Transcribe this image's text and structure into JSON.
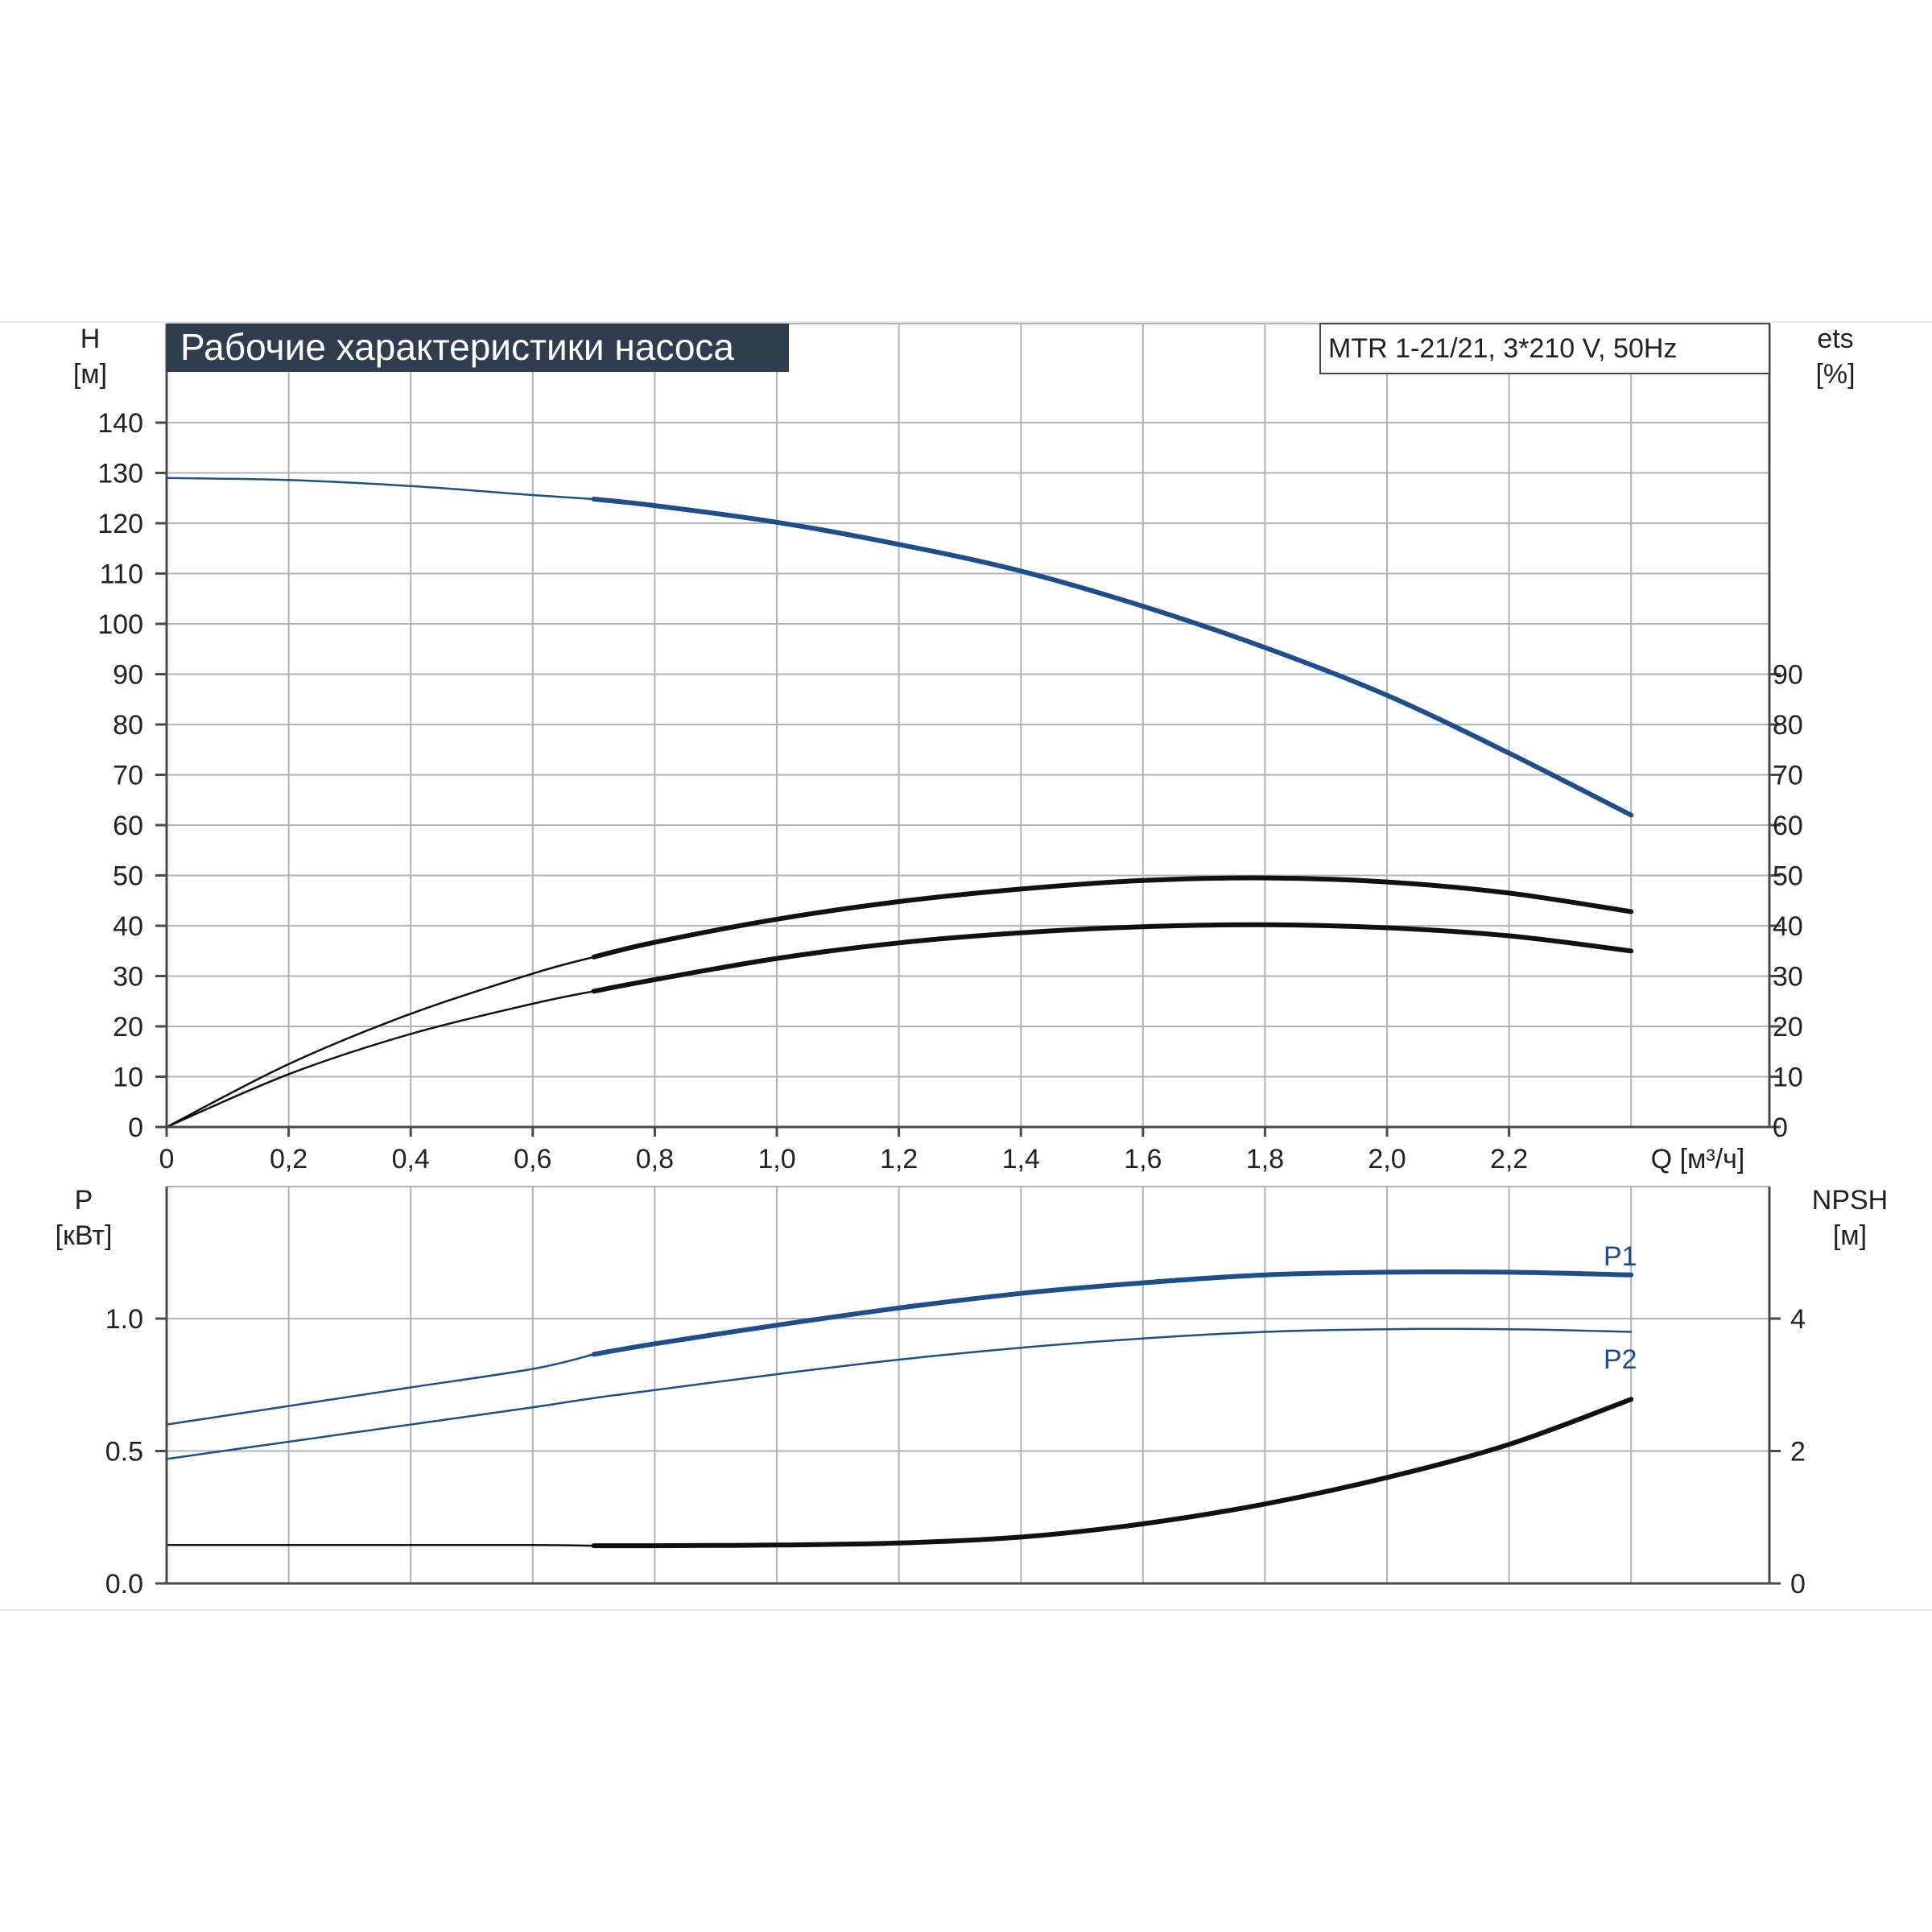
{
  "chart_data": [
    {
      "type": "line",
      "title": "Рабочие характеристики насоса",
      "subtitle": "MTR 1-21/21, 3*210 V, 50Hz",
      "xlabel": "Q [м³/ч]",
      "ylabel": "H [м]",
      "ylabel_right": "ets [%]",
      "xlim": [
        0,
        2.6
      ],
      "ylim": [
        0,
        140
      ],
      "ylim_right": [
        0,
        140
      ],
      "x_ticks": [
        "0",
        "0,2",
        "0,4",
        "0,6",
        "0,8",
        "1,0",
        "1,2",
        "1,4",
        "1,6",
        "1,8",
        "2,0",
        "2,2"
      ],
      "y_ticks": [
        "0",
        "10",
        "20",
        "30",
        "40",
        "50",
        "60",
        "70",
        "80",
        "90",
        "100",
        "110",
        "120",
        "130",
        "140"
      ],
      "y_ticks_right": [
        "0",
        "10",
        "20",
        "30",
        "40",
        "50",
        "60",
        "70",
        "80",
        "90"
      ],
      "grid": true,
      "series": [
        {
          "key": "H",
          "axis": "left",
          "color": "#1f4e8c",
          "bold_from": 0.7,
          "x": [
            0,
            0.2,
            0.4,
            0.6,
            0.7,
            0.8,
            1.0,
            1.2,
            1.4,
            1.6,
            1.8,
            2.0,
            2.2,
            2.4
          ],
          "y": [
            129,
            128.6,
            127.4,
            125.6,
            124.8,
            123.5,
            120.2,
            115.8,
            110.5,
            103.5,
            95.3,
            85.8,
            74.3,
            62.0
          ]
        },
        {
          "key": "eta_upper",
          "axis": "right",
          "color": "#111111",
          "bold_from": 0.7,
          "x": [
            0,
            0.2,
            0.4,
            0.6,
            0.7,
            0.8,
            1.0,
            1.2,
            1.4,
            1.6,
            1.8,
            2.0,
            2.2,
            2.4
          ],
          "y": [
            0,
            12.5,
            22.5,
            30.5,
            33.8,
            36.7,
            41.3,
            44.8,
            47.3,
            49.0,
            49.5,
            48.7,
            46.5,
            42.8
          ]
        },
        {
          "key": "eta_lower",
          "axis": "right",
          "color": "#111111",
          "bold_from": 0.7,
          "x": [
            0,
            0.2,
            0.4,
            0.6,
            0.7,
            0.8,
            1.0,
            1.2,
            1.4,
            1.6,
            1.8,
            2.0,
            2.2,
            2.4
          ],
          "y": [
            0,
            10.5,
            18.5,
            24.5,
            27.0,
            29.3,
            33.5,
            36.6,
            38.6,
            39.8,
            40.2,
            39.6,
            38.0,
            35.0
          ]
        }
      ]
    },
    {
      "type": "line",
      "xlabel": "",
      "ylabel": "P [кВт]",
      "ylabel_right": "NPSH [м]",
      "xlim": [
        0,
        2.6
      ],
      "ylim": [
        0,
        1.5
      ],
      "ylim_right": [
        0,
        6
      ],
      "y_ticks": [
        "0.0",
        "0.5",
        "1.0"
      ],
      "y_tick_values": [
        0,
        0.5,
        1.0
      ],
      "y_ticks_right": [
        "0",
        "2",
        "4"
      ],
      "y_tick_values_right": [
        0,
        2,
        4
      ],
      "grid": true,
      "series": [
        {
          "key": "P1",
          "name": "P1",
          "axis": "left",
          "color": "#1f4e8c",
          "bold_from": 0.7,
          "x": [
            0,
            0.2,
            0.4,
            0.6,
            0.7,
            0.8,
            1.0,
            1.2,
            1.4,
            1.6,
            1.8,
            2.0,
            2.2,
            2.4
          ],
          "y": [
            0.6,
            0.67,
            0.74,
            0.81,
            0.865,
            0.905,
            0.975,
            1.04,
            1.095,
            1.135,
            1.165,
            1.175,
            1.175,
            1.165
          ]
        },
        {
          "key": "P2",
          "name": "P2",
          "axis": "left",
          "color": "#1f4e8c",
          "bold_from": 99,
          "x": [
            0,
            0.2,
            0.4,
            0.6,
            0.7,
            0.8,
            1.0,
            1.2,
            1.4,
            1.6,
            1.8,
            2.0,
            2.2,
            2.4
          ],
          "y": [
            0.47,
            0.535,
            0.6,
            0.665,
            0.7,
            0.73,
            0.79,
            0.845,
            0.89,
            0.925,
            0.95,
            0.96,
            0.96,
            0.95
          ]
        },
        {
          "key": "NPSH",
          "axis": "right",
          "color": "#111111",
          "bold_from": 0.7,
          "x": [
            0,
            0.2,
            0.4,
            0.6,
            0.7,
            0.8,
            1.0,
            1.2,
            1.4,
            1.6,
            1.8,
            2.0,
            2.2,
            2.4
          ],
          "y": [
            0.58,
            0.58,
            0.58,
            0.58,
            0.57,
            0.57,
            0.58,
            0.61,
            0.7,
            0.9,
            1.2,
            1.6,
            2.1,
            2.78
          ]
        }
      ]
    }
  ],
  "colors": {
    "curve_blue": "#1f4e8c",
    "curve_black": "#111111",
    "title_bg": "#2f3d4e",
    "grid": "#aeb4bd"
  }
}
